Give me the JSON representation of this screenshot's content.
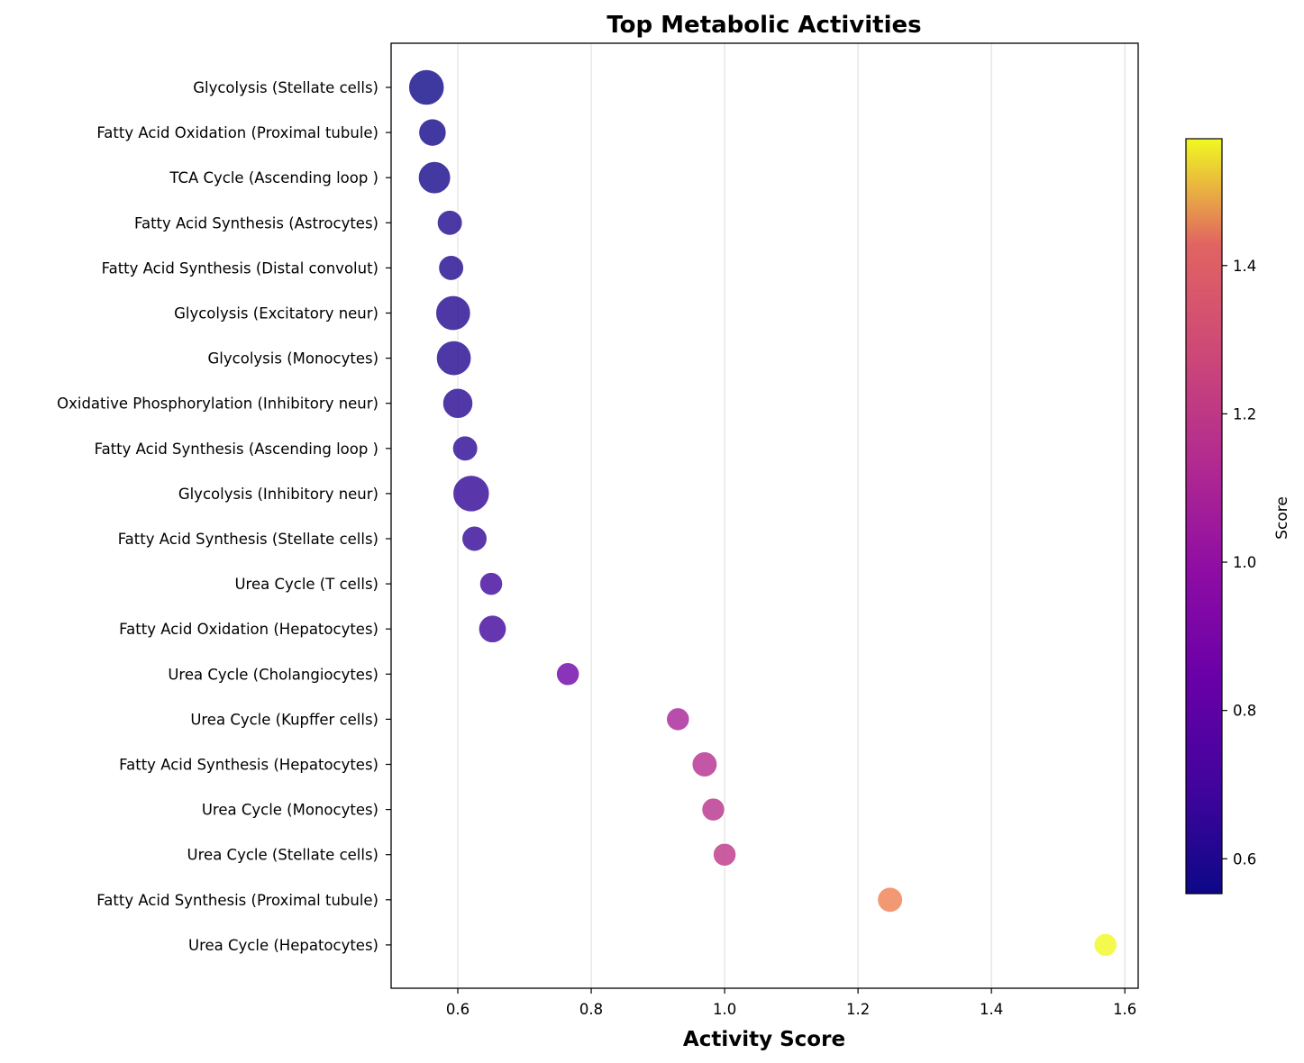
{
  "chart_data": {
    "type": "scatter",
    "title": "Top Metabolic Activities",
    "xlabel": "Activity Score",
    "ylabel": "",
    "xlim": [
      0.5,
      1.62
    ],
    "xticks": [
      "0.6",
      "0.8",
      "1.0",
      "1.2",
      "1.4",
      "1.6"
    ],
    "grid": "x",
    "colormap": "plasma",
    "colorbar": {
      "label": "Score",
      "range": [
        0.553,
        1.571
      ],
      "ticks": [
        "0.6",
        "0.8",
        "1.0",
        "1.2",
        "1.4"
      ]
    },
    "points": [
      {
        "label": "Glycolysis (Stellate cells)",
        "x": 0.553,
        "size": 1.0
      },
      {
        "label": "Fatty Acid Oxidation (Proximal tubule)",
        "x": 0.562,
        "size": 0.55
      },
      {
        "label": "TCA Cycle (Ascending loop )",
        "x": 0.565,
        "size": 0.82
      },
      {
        "label": "Fatty Acid Synthesis (Astrocytes)",
        "x": 0.588,
        "size": 0.42
      },
      {
        "label": "Fatty Acid Synthesis (Distal convolut)",
        "x": 0.59,
        "size": 0.42
      },
      {
        "label": "Glycolysis (Excitatory neur)",
        "x": 0.593,
        "size": 0.96
      },
      {
        "label": "Glycolysis (Monocytes)",
        "x": 0.594,
        "size": 0.96
      },
      {
        "label": "Oxidative Phosphorylation (Inhibitory neur)",
        "x": 0.6,
        "size": 0.7
      },
      {
        "label": "Fatty Acid Synthesis (Ascending loop )",
        "x": 0.611,
        "size": 0.42
      },
      {
        "label": "Glycolysis (Inhibitory neur)",
        "x": 0.62,
        "size": 1.05
      },
      {
        "label": "Fatty Acid Synthesis (Stellate cells)",
        "x": 0.625,
        "size": 0.42
      },
      {
        "label": "Urea Cycle (T cells)",
        "x": 0.65,
        "size": 0.3
      },
      {
        "label": "Fatty Acid Oxidation (Hepatocytes)",
        "x": 0.652,
        "size": 0.56
      },
      {
        "label": "Urea Cycle (Cholangiocytes)",
        "x": 0.765,
        "size": 0.3
      },
      {
        "label": "Urea Cycle (Kupffer cells)",
        "x": 0.93,
        "size": 0.3
      },
      {
        "label": "Fatty Acid Synthesis (Hepatocytes)",
        "x": 0.97,
        "size": 0.42
      },
      {
        "label": "Urea Cycle (Monocytes)",
        "x": 0.983,
        "size": 0.3
      },
      {
        "label": "Urea Cycle (Stellate cells)",
        "x": 1.0,
        "size": 0.3
      },
      {
        "label": "Fatty Acid Synthesis (Proximal tubule)",
        "x": 1.248,
        "size": 0.42
      },
      {
        "label": "Urea Cycle (Hepatocytes)",
        "x": 1.571,
        "size": 0.3
      }
    ]
  }
}
